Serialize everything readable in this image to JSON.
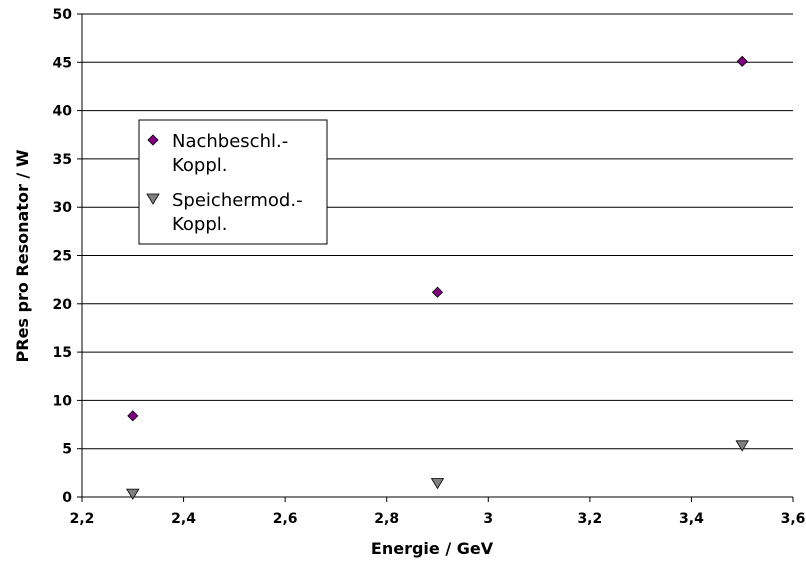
{
  "chart_data": {
    "type": "scatter",
    "xlabel": "Energie / GeV",
    "ylabel": "PRes pro Resonator / W",
    "xlim": [
      2.2,
      3.6
    ],
    "ylim": [
      0,
      50
    ],
    "xticks": [
      "2,2",
      "2,4",
      "2,6",
      "2,8",
      "3",
      "3,2",
      "3,4",
      "3,6"
    ],
    "yticks": [
      "0",
      "5",
      "10",
      "15",
      "20",
      "25",
      "30",
      "35",
      "40",
      "45",
      "50"
    ],
    "grid": "horizontal",
    "legend_position": "upper-left",
    "series": [
      {
        "name": "Nachbeschl.-Koppl.",
        "legend_lines": [
          "Nachbeschl.-",
          "Koppl."
        ],
        "marker": "diamond",
        "color": "#800080",
        "x": [
          2.3,
          2.9,
          3.5
        ],
        "y": [
          8.4,
          21.2,
          45.1
        ]
      },
      {
        "name": "Speichermod.-Koppl.",
        "legend_lines": [
          "Speichermod.-",
          "Koppl."
        ],
        "marker": "triangle-down",
        "color": "#808080",
        "x": [
          2.3,
          2.9,
          3.5
        ],
        "y": [
          0.3,
          1.4,
          5.3
        ]
      }
    ]
  }
}
